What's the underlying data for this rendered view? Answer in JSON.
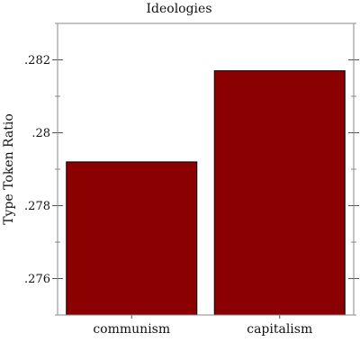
{
  "chart_data": {
    "type": "bar",
    "title": "Ideologies",
    "xlabel": "",
    "ylabel": "Type Token Ratio",
    "categories": [
      "communism",
      "capitalism"
    ],
    "values": [
      0.2792,
      0.2817
    ],
    "ylim": [
      0.275,
      0.283
    ],
    "yticks": [
      0.276,
      0.278,
      0.28,
      0.282
    ],
    "ytick_labels": [
      ".276",
      ".278",
      ".28",
      ".282"
    ],
    "bar_color": "#8b0000",
    "grid": false
  }
}
